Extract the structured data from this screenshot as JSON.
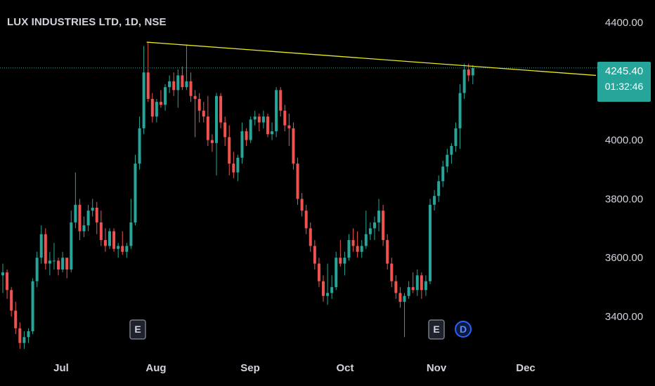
{
  "symbol_title": "LUX INDUSTRIES LTD, 1D, NSE",
  "last_price": "4245.40",
  "countdown": "01:32:46",
  "colors": {
    "up": "#26a69a",
    "down": "#ef5350",
    "trendline": "#e8e822",
    "background": "#000000",
    "axis_text": "#d1d4dc"
  },
  "events": [
    {
      "label": "E",
      "type": "earnings",
      "month_anchor": "late Jul"
    },
    {
      "label": "E",
      "type": "earnings",
      "month_anchor": "early Nov"
    },
    {
      "label": "D",
      "type": "dividend",
      "month_anchor": "mid Nov"
    }
  ],
  "chart_data": {
    "type": "candlestick",
    "title": "LUX INDUSTRIES LTD, 1D, NSE",
    "x_tick_labels": [
      "Jul",
      "Aug",
      "Sep",
      "Oct",
      "Nov",
      "Dec"
    ],
    "y_tick_labels": [
      "4400.00",
      "4000.00",
      "3800.00",
      "3600.00",
      "3400.00"
    ],
    "ylim": [
      3280,
      4420
    ],
    "last_price": 4245.4,
    "trendline": {
      "from": 4333,
      "to": 4220,
      "note": "resistance drawn from late-Jul high to mid-Nov high"
    },
    "candles": [
      [
        3540,
        3580,
        3480,
        3550
      ],
      [
        3550,
        3560,
        3460,
        3490
      ],
      [
        3490,
        3500,
        3400,
        3420
      ],
      [
        3420,
        3450,
        3340,
        3360
      ],
      [
        3360,
        3380,
        3290,
        3310
      ],
      [
        3310,
        3350,
        3290,
        3330
      ],
      [
        3330,
        3360,
        3310,
        3350
      ],
      [
        3350,
        3530,
        3340,
        3520
      ],
      [
        3520,
        3620,
        3500,
        3600
      ],
      [
        3600,
        3710,
        3580,
        3680
      ],
      [
        3680,
        3700,
        3560,
        3580
      ],
      [
        3580,
        3620,
        3540,
        3590
      ],
      [
        3590,
        3650,
        3560,
        3590
      ],
      [
        3590,
        3600,
        3540,
        3560
      ],
      [
        3560,
        3620,
        3550,
        3600
      ],
      [
        3600,
        3600,
        3530,
        3560
      ],
      [
        3560,
        3760,
        3550,
        3720
      ],
      [
        3720,
        3890,
        3700,
        3780
      ],
      [
        3780,
        3800,
        3660,
        3690
      ],
      [
        3690,
        3740,
        3670,
        3710
      ],
      [
        3710,
        3780,
        3690,
        3760
      ],
      [
        3760,
        3800,
        3740,
        3770
      ],
      [
        3770,
        3790,
        3680,
        3720
      ],
      [
        3720,
        3760,
        3640,
        3660
      ],
      [
        3660,
        3700,
        3620,
        3640
      ],
      [
        3640,
        3700,
        3630,
        3690
      ],
      [
        3690,
        3700,
        3620,
        3630
      ],
      [
        3630,
        3650,
        3600,
        3640
      ],
      [
        3640,
        3690,
        3610,
        3620
      ],
      [
        3620,
        3650,
        3600,
        3640
      ],
      [
        3640,
        3800,
        3630,
        3720
      ],
      [
        3720,
        3950,
        3710,
        3920
      ],
      [
        3920,
        4080,
        3900,
        4040
      ],
      [
        4040,
        4320,
        4020,
        4230
      ],
      [
        4230,
        4333,
        4130,
        4140
      ],
      [
        4140,
        4160,
        4060,
        4080
      ],
      [
        4080,
        4140,
        4060,
        4130
      ],
      [
        4130,
        4170,
        4110,
        4120
      ],
      [
        4120,
        4190,
        4100,
        4180
      ],
      [
        4180,
        4220,
        4160,
        4200
      ],
      [
        4200,
        4230,
        4150,
        4170
      ],
      [
        4170,
        4240,
        4110,
        4220
      ],
      [
        4220,
        4250,
        4170,
        4180
      ],
      [
        4180,
        4325,
        4170,
        4200
      ],
      [
        4200,
        4230,
        4130,
        4150
      ],
      [
        4150,
        4170,
        4010,
        4140
      ],
      [
        4140,
        4160,
        4060,
        4100
      ],
      [
        4100,
        4130,
        4060,
        4080
      ],
      [
        4080,
        4150,
        3980,
        4000
      ],
      [
        4000,
        4020,
        3960,
        3990
      ],
      [
        3990,
        4160,
        3880,
        4150
      ],
      [
        4150,
        4160,
        4040,
        4060
      ],
      [
        4060,
        4080,
        3980,
        4010
      ],
      [
        4010,
        4050,
        3880,
        3920
      ],
      [
        3920,
        3960,
        3870,
        3890
      ],
      [
        3890,
        3950,
        3860,
        3940
      ],
      [
        3940,
        4060,
        3920,
        4030
      ],
      [
        4030,
        4040,
        3980,
        4000
      ],
      [
        4000,
        4080,
        3990,
        4070
      ],
      [
        4070,
        4100,
        4050,
        4080
      ],
      [
        4080,
        4090,
        4030,
        4060
      ],
      [
        4060,
        4100,
        4040,
        4080
      ],
      [
        4080,
        4090,
        4010,
        4020
      ],
      [
        4020,
        4060,
        4000,
        4030
      ],
      [
        4030,
        4180,
        4010,
        4170
      ],
      [
        4170,
        4180,
        4080,
        4100
      ],
      [
        4100,
        4120,
        4030,
        4050
      ],
      [
        4050,
        4090,
        3980,
        4040
      ],
      [
        4040,
        4060,
        3900,
        3920
      ],
      [
        3920,
        3940,
        3780,
        3800
      ],
      [
        3800,
        3820,
        3740,
        3760
      ],
      [
        3760,
        3780,
        3680,
        3700
      ],
      [
        3700,
        3720,
        3620,
        3640
      ],
      [
        3640,
        3660,
        3560,
        3580
      ],
      [
        3580,
        3600,
        3500,
        3520
      ],
      [
        3520,
        3540,
        3450,
        3470
      ],
      [
        3470,
        3580,
        3440,
        3480
      ],
      [
        3480,
        3540,
        3460,
        3500
      ],
      [
        3500,
        3620,
        3490,
        3600
      ],
      [
        3600,
        3660,
        3570,
        3580
      ],
      [
        3580,
        3620,
        3540,
        3600
      ],
      [
        3600,
        3680,
        3590,
        3660
      ],
      [
        3660,
        3700,
        3620,
        3640
      ],
      [
        3640,
        3690,
        3600,
        3620
      ],
      [
        3620,
        3660,
        3600,
        3640
      ],
      [
        3640,
        3760,
        3630,
        3680
      ],
      [
        3680,
        3720,
        3660,
        3700
      ],
      [
        3700,
        3740,
        3660,
        3720
      ],
      [
        3720,
        3800,
        3690,
        3760
      ],
      [
        3760,
        3780,
        3640,
        3660
      ],
      [
        3660,
        3680,
        3560,
        3580
      ],
      [
        3580,
        3600,
        3500,
        3520
      ],
      [
        3520,
        3540,
        3460,
        3480
      ],
      [
        3480,
        3500,
        3430,
        3450
      ],
      [
        3450,
        3480,
        3330,
        3470
      ],
      [
        3470,
        3520,
        3460,
        3500
      ],
      [
        3500,
        3550,
        3480,
        3490
      ],
      [
        3490,
        3560,
        3470,
        3540
      ],
      [
        3540,
        3550,
        3460,
        3490
      ],
      [
        3490,
        3540,
        3470,
        3520
      ],
      [
        3520,
        3800,
        3510,
        3780
      ],
      [
        3780,
        3830,
        3760,
        3810
      ],
      [
        3810,
        3880,
        3790,
        3860
      ],
      [
        3860,
        3930,
        3840,
        3910
      ],
      [
        3910,
        3970,
        3890,
        3950
      ],
      [
        3950,
        3990,
        3920,
        3980
      ],
      [
        3980,
        4060,
        3960,
        4040
      ],
      [
        4040,
        4190,
        3970,
        4160
      ],
      [
        4160,
        4260,
        4140,
        4240
      ],
      [
        4240,
        4260,
        4200,
        4220
      ],
      [
        4220,
        4255,
        4190,
        4245
      ]
    ]
  }
}
